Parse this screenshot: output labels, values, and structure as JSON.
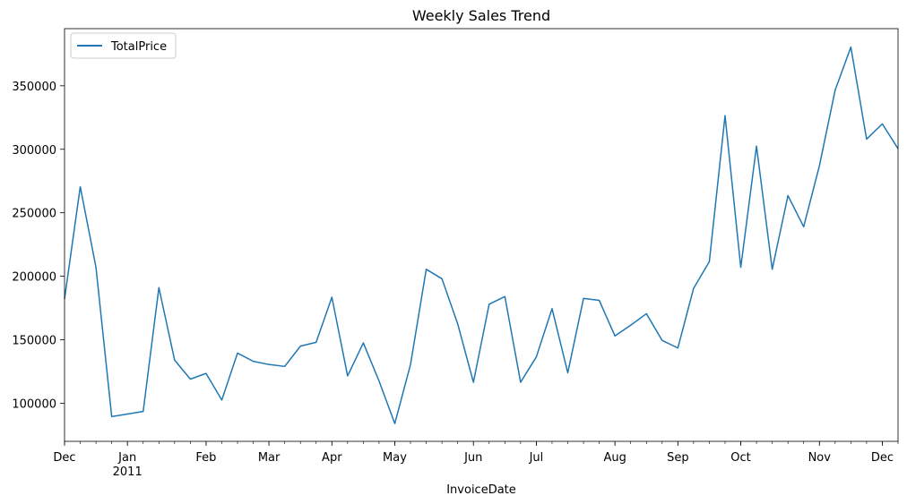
{
  "chart_data": {
    "type": "line",
    "title": "Weekly Sales Trend",
    "xlabel": "InvoiceDate",
    "ylabel": "",
    "x_tick_labels": [
      "Dec",
      "Jan",
      "Feb",
      "Mar",
      "Apr",
      "May",
      "Jun",
      "Jul",
      "Aug",
      "Sep",
      "Oct",
      "Nov",
      "Dec"
    ],
    "x_year_label": "2011",
    "y_ticks": [
      100000,
      150000,
      200000,
      250000,
      300000,
      350000
    ],
    "y_tick_labels": [
      "100000",
      "150000",
      "200000",
      "250000",
      "300000",
      "350000"
    ],
    "ylim": [
      70000,
      395000
    ],
    "xlim": [
      "2010-12-05",
      "2011-12-11"
    ],
    "legend": "upper-left",
    "grid": false,
    "series": [
      {
        "name": "TotalPrice",
        "color": "#1f77b4",
        "x": [
          "2010-12-05",
          "2010-12-12",
          "2010-12-19",
          "2010-12-26",
          "2011-01-02",
          "2011-01-09",
          "2011-01-16",
          "2011-01-23",
          "2011-01-30",
          "2011-02-06",
          "2011-02-13",
          "2011-02-20",
          "2011-02-27",
          "2011-03-06",
          "2011-03-13",
          "2011-03-20",
          "2011-03-27",
          "2011-04-03",
          "2011-04-10",
          "2011-04-17",
          "2011-04-24",
          "2011-05-01",
          "2011-05-08",
          "2011-05-15",
          "2011-05-22",
          "2011-05-29",
          "2011-06-05",
          "2011-06-12",
          "2011-06-19",
          "2011-06-26",
          "2011-07-03",
          "2011-07-10",
          "2011-07-17",
          "2011-07-24",
          "2011-07-31",
          "2011-08-07",
          "2011-08-14",
          "2011-08-21",
          "2011-08-28",
          "2011-09-04",
          "2011-09-11",
          "2011-09-18",
          "2011-09-25",
          "2011-10-02",
          "2011-10-09",
          "2011-10-16",
          "2011-10-23",
          "2011-10-30",
          "2011-11-06",
          "2011-11-13",
          "2011-11-20",
          "2011-11-27",
          "2011-12-04",
          "2011-12-11"
        ],
        "values": [
          182000,
          270500,
          207000,
          89500,
          91500,
          93500,
          191000,
          134000,
          119000,
          123500,
          102500,
          139500,
          133000,
          130500,
          129000,
          145000,
          148000,
          183500,
          121500,
          147500,
          117500,
          84000,
          130500,
          205500,
          198000,
          162500,
          116500,
          178000,
          184000,
          116500,
          136500,
          174500,
          124000,
          182500,
          181000,
          153000,
          161500,
          170500,
          149500,
          143500,
          190500,
          211500,
          326500,
          207000,
          302500,
          205500,
          263500,
          239000,
          287000,
          346500,
          380500,
          308000,
          320000,
          300500
        ]
      }
    ]
  }
}
